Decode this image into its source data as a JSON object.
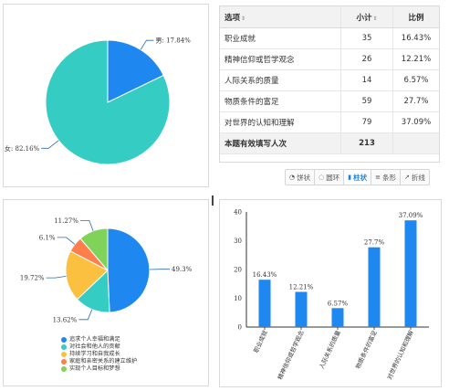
{
  "table": {
    "headers": {
      "option": "选项",
      "count": "小计",
      "ratio": "比例"
    },
    "rows": [
      {
        "option": "职业成就",
        "count": "35",
        "ratio": "16.43%"
      },
      {
        "option": "精神信仰或哲学观念",
        "count": "26",
        "ratio": "12.21%"
      },
      {
        "option": "人际关系的质量",
        "count": "14",
        "ratio": "6.57%"
      },
      {
        "option": "物质条件的富足",
        "count": "59",
        "ratio": "27.7%"
      },
      {
        "option": "对世界的认知和理解",
        "count": "79",
        "ratio": "37.09%"
      }
    ],
    "total": {
      "label": "本题有效填写人次",
      "count": "213"
    }
  },
  "toolbar": [
    {
      "icon": "pie-icon",
      "glyph": "◔",
      "label": "饼状",
      "active": false
    },
    {
      "icon": "ring-icon",
      "glyph": "◌",
      "label": "圆环",
      "active": false
    },
    {
      "icon": "bar-icon",
      "glyph": "▮",
      "label": "柱状",
      "active": true
    },
    {
      "icon": "hbar-icon",
      "glyph": "≡",
      "label": "条形",
      "active": false
    },
    {
      "icon": "line-icon",
      "glyph": "↗",
      "label": "折线",
      "active": false
    }
  ],
  "colors": {
    "blue": "#1e88f0",
    "teal": "#35ccc4",
    "yellow": "#fbc03f",
    "orange": "#ff7e4c",
    "green": "#7fd35a",
    "leader": "#2a6bb8"
  },
  "chart_data": [
    {
      "type": "pie",
      "labels": [
        "男",
        "女"
      ],
      "values": [
        17.84,
        82.16
      ],
      "label_texts": [
        "男: 17.84%",
        "女: 82.16%"
      ],
      "colors": [
        "#1e88f0",
        "#35ccc4"
      ]
    },
    {
      "type": "pie",
      "labels": [
        "追求个人幸福和满足",
        "对社会和他人的贡献",
        "持续学习和自我成长",
        "家庭和亲密关系的建立维护",
        "实现个人目标和梦想"
      ],
      "values": [
        49.3,
        13.62,
        19.72,
        6.1,
        11.27
      ],
      "label_texts": [
        "49.3%",
        "13.62%",
        "19.72%",
        "6.1%",
        "11.27%"
      ],
      "colors": [
        "#1e88f0",
        "#35ccc4",
        "#fbc03f",
        "#ff7e4c",
        "#7fd35a"
      ],
      "legend_position": "bottom"
    },
    {
      "type": "bar",
      "categories": [
        "职业成就",
        "精神信仰或哲学观念",
        "人际关系的质量",
        "物质条件的富足",
        "对世界的认知和理解"
      ],
      "values": [
        16.43,
        12.21,
        6.57,
        27.7,
        37.09
      ],
      "value_labels": [
        "16.43%",
        "12.21%",
        "6.57%",
        "27.7%",
        "37.09%"
      ],
      "ylim": [
        0,
        40
      ],
      "yticks": [
        0,
        10,
        20,
        30,
        40
      ],
      "grid": false,
      "color": "#1e88f0"
    }
  ]
}
